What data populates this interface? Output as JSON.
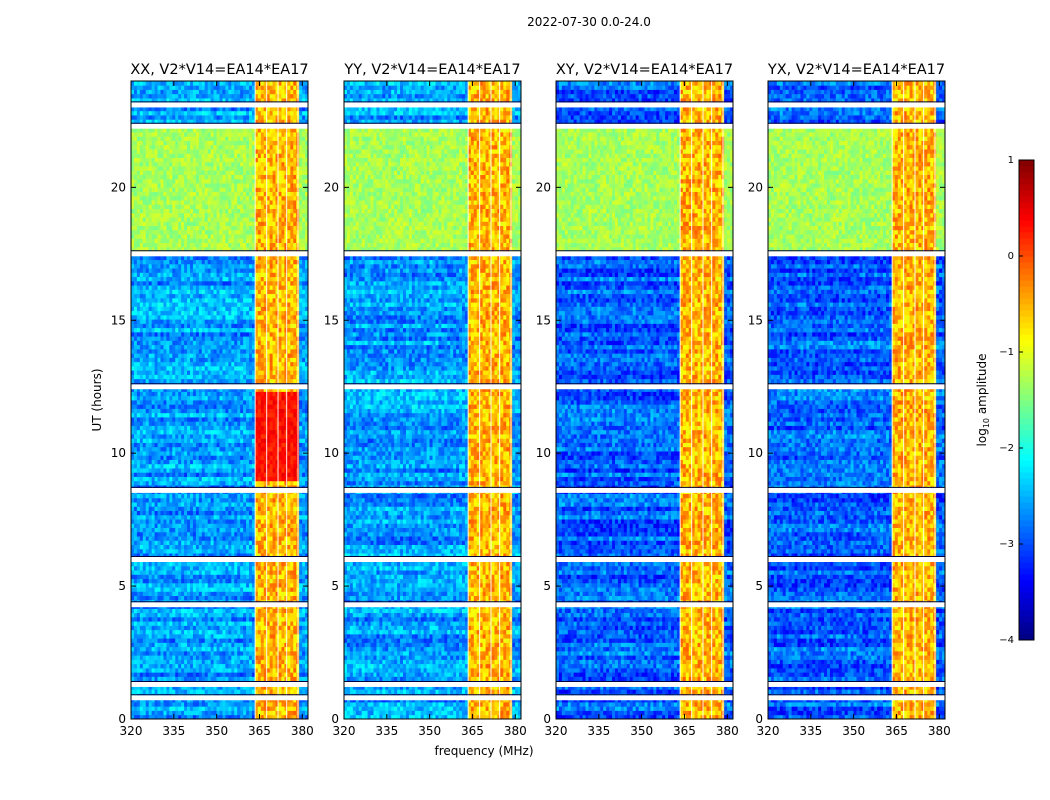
{
  "chart_data": {
    "type": "heatmap",
    "suptitle": "2022-07-30 0.0-24.0",
    "xlabel": "frequency (MHz)",
    "ylabel": "UT (hours)",
    "xlim": [
      320,
      382
    ],
    "ylim": [
      0,
      24
    ],
    "xticks": [
      320,
      335,
      350,
      365,
      380
    ],
    "yticks": [
      0,
      5,
      10,
      15,
      20
    ],
    "colormap": "jet",
    "colorbar": {
      "label": "log",
      "label_sub": "10",
      "label_tail": " amplitude",
      "range": [
        -4,
        1
      ],
      "ticks": [
        -4,
        -3,
        -2,
        -1,
        0,
        1
      ],
      "tick_labels": [
        "−4",
        "−3",
        "−2",
        "−1",
        "0",
        "1"
      ]
    },
    "rfi_band_mhz": [
      363.5,
      378.5
    ],
    "gap_hours": [
      0.8,
      1.3,
      4.3,
      6.0,
      8.6,
      12.5,
      17.5,
      22.3,
      23.1
    ],
    "panels": [
      {
        "title": "XX, V2*V14=EA14*EA17",
        "pol": "XX",
        "high_band_hours": [
          17.6,
          22.2
        ],
        "background_log_amplitude": -2.6
      },
      {
        "title": "YY, V2*V14=EA14*EA17",
        "pol": "YY",
        "high_band_hours": [
          17.6,
          22.2
        ],
        "background_log_amplitude": -2.6
      },
      {
        "title": "XY, V2*V14=EA14*EA17",
        "pol": "XY",
        "high_band_hours": [
          17.6,
          22.2
        ],
        "background_log_amplitude": -2.9
      },
      {
        "title": "YX, V2*V14=EA14*EA17",
        "pol": "YX",
        "high_band_hours": [
          17.6,
          22.2
        ],
        "background_log_amplitude": -2.9
      }
    ]
  }
}
